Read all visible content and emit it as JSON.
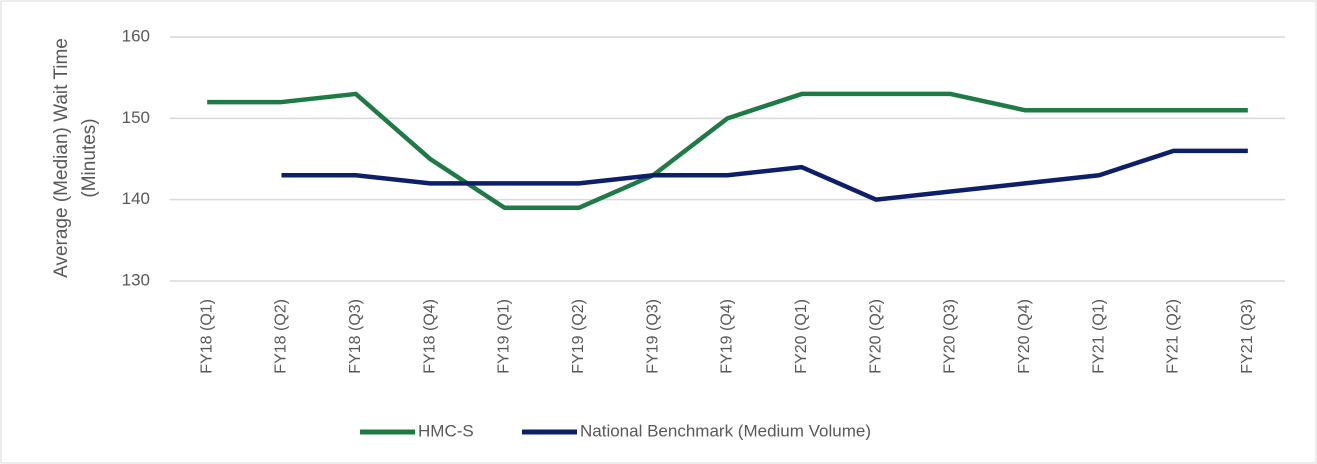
{
  "chart_data": {
    "type": "line",
    "ylabel": [
      "Average (Median) Wait Time",
      "(Minutes)"
    ],
    "categories": [
      "FY18 (Q1)",
      "FY18 (Q2)",
      "FY18 (Q3)",
      "FY18 (Q4)",
      "FY19 (Q1)",
      "FY19 (Q2)",
      "FY19 (Q3)",
      "FY19 (Q4)",
      "FY20 (Q1)",
      "FY20 (Q2)",
      "FY20 (Q3)",
      "FY20 (Q4)",
      "FY21 (Q1)",
      "FY21 (Q2)",
      "FY21 (Q3)"
    ],
    "series": [
      {
        "name": "HMC-S",
        "color": "#1e7b45",
        "values": [
          152,
          152,
          153,
          145,
          139,
          139,
          143,
          150,
          153,
          153,
          153,
          151,
          151,
          151,
          151
        ]
      },
      {
        "name": "National Benchmark (Medium Volume)",
        "color": "#0d1f6b",
        "values": [
          null,
          143,
          143,
          142,
          142,
          142,
          143,
          143,
          144,
          140,
          141,
          142,
          143,
          146,
          146
        ]
      }
    ],
    "ylim": [
      130,
      160
    ],
    "yticks": [
      130,
      140,
      150,
      160
    ],
    "grid": true,
    "legend": "bottom"
  }
}
